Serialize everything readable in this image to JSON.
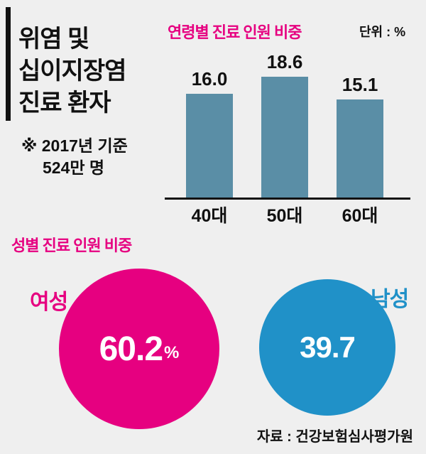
{
  "colors": {
    "background": "#efefef",
    "bar": "#5a8ea6",
    "magenta": "#e60080",
    "blue": "#2091c8",
    "text": "#111111"
  },
  "header": {
    "title_lines": [
      "위염 및",
      "십이지장염",
      "진료 환자"
    ],
    "note_line1": "※ 2017년 기준",
    "note_line2": "524만 명"
  },
  "bar_chart": {
    "title": "연령별 진료 인원 비중",
    "unit_label": "단위 : %",
    "value_labels": [
      "16.0",
      "18.6",
      "15.1"
    ],
    "categories": [
      "40대",
      "50대",
      "60대"
    ]
  },
  "gender_section": {
    "title": "성별 진료 인원 비중",
    "female_label": "여성",
    "female_value": "60.2",
    "female_unit": "%",
    "male_label": "남성",
    "male_value": "39.7"
  },
  "source": "자료 : 건강보험심사평가원",
  "chart_data": [
    {
      "type": "bar",
      "title": "연령별 진료 인원 비중",
      "unit": "%",
      "categories": [
        "40대",
        "50대",
        "60대"
      ],
      "values": [
        16.0,
        18.6,
        15.1
      ],
      "ylim": [
        0,
        20
      ],
      "grid": false,
      "bar_color": "#5a8ea6",
      "value_labels_shown": true,
      "legend": "none"
    },
    {
      "type": "pie",
      "title": "성별 진료 인원 비중",
      "categories": [
        "여성",
        "남성"
      ],
      "values": [
        60.2,
        39.7
      ],
      "unit": "%",
      "colors": [
        "#e60080",
        "#2091c8"
      ],
      "layout_hint": "two separate circles sized by value, labels outside, values inside in white"
    }
  ]
}
